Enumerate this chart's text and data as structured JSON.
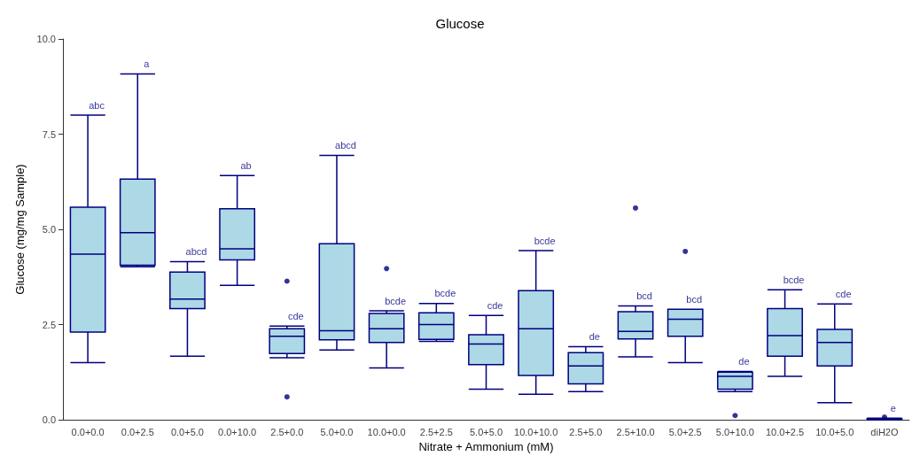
{
  "chart_data": {
    "type": "box",
    "title": "Glucose",
    "xlabel": "Nitrate + Ammonium (mM)",
    "ylabel": "Glucose (mg/mg Sample)",
    "categories": [
      "0.0+0.0",
      "0.0+2.5",
      "0.0+5.0",
      "0.0+10.0",
      "2.5+0.0",
      "5.0+0.0",
      "10.0+0.0",
      "2.5+2.5",
      "5.0+5.0",
      "10.0+10.0",
      "2.5+5.0",
      "2.5+10.0",
      "5.0+2.5",
      "5.0+10.0",
      "10.0+2.5",
      "10.0+5.0",
      "diH2O"
    ],
    "color": "#add8e6",
    "boxes": [
      {
        "low": 1.5,
        "q1": 2.3,
        "median": 4.35,
        "q3": 5.58,
        "high": 8.0
      },
      {
        "low": 4.02,
        "q1": 4.06,
        "median": 4.91,
        "q3": 6.32,
        "high": 9.08
      },
      {
        "low": 1.67,
        "q1": 2.92,
        "median": 3.17,
        "q3": 3.88,
        "high": 4.15
      },
      {
        "low": 3.53,
        "q1": 4.2,
        "median": 4.49,
        "q3": 5.54,
        "high": 6.41
      },
      {
        "low": 1.63,
        "q1": 1.74,
        "median": 2.19,
        "q3": 2.39,
        "high": 2.46,
        "outliers": [
          3.64,
          0.6
        ]
      },
      {
        "low": 1.83,
        "q1": 2.1,
        "median": 2.34,
        "q3": 4.62,
        "high": 6.94
      },
      {
        "low": 1.36,
        "q1": 2.03,
        "median": 2.39,
        "q3": 2.79,
        "high": 2.86,
        "outliers": [
          3.97
        ]
      },
      {
        "low": 2.06,
        "q1": 2.11,
        "median": 2.5,
        "q3": 2.81,
        "high": 3.05
      },
      {
        "low": 0.8,
        "q1": 1.45,
        "median": 1.99,
        "q3": 2.23,
        "high": 2.74
      },
      {
        "low": 0.67,
        "q1": 1.16,
        "median": 2.39,
        "q3": 3.39,
        "high": 4.44
      },
      {
        "low": 0.74,
        "q1": 0.94,
        "median": 1.41,
        "q3": 1.76,
        "high": 1.92
      },
      {
        "low": 1.65,
        "q1": 2.12,
        "median": 2.32,
        "q3": 2.84,
        "high": 2.99,
        "outliers": [
          5.56
        ]
      },
      {
        "low": 1.5,
        "q1": 2.19,
        "median": 2.64,
        "q3": 2.9,
        "high": 2.9,
        "outliers": [
          4.42
        ]
      },
      {
        "low": 0.74,
        "q1": 0.8,
        "median": 1.14,
        "q3": 1.25,
        "high": 1.27,
        "outliers": [
          0.11
        ]
      },
      {
        "low": 1.14,
        "q1": 1.67,
        "median": 2.21,
        "q3": 2.92,
        "high": 3.41
      },
      {
        "low": 0.45,
        "q1": 1.41,
        "median": 2.03,
        "q3": 2.37,
        "high": 3.04
      },
      {
        "low": 0,
        "q1": 0.01,
        "median": 0.02,
        "q3": 0.03,
        "high": 0.04,
        "outliers": [
          0.07
        ]
      }
    ],
    "ylim": [
      0,
      10
    ],
    "yticks": [
      {
        "value": 0,
        "label": "0.0"
      },
      {
        "value": 2.5,
        "label": "2.5"
      },
      {
        "value": 5,
        "label": "5.0"
      },
      {
        "value": 7.5,
        "label": "7.5"
      },
      {
        "value": 10,
        "label": "10.0"
      }
    ],
    "grid": false,
    "annotations": [
      "abc",
      "a",
      "abcd",
      "ab",
      "cde",
      "abcd",
      "bcde",
      "bcde",
      "cde",
      "bcde",
      "de",
      "bcd",
      "bcd",
      "de",
      "bcde",
      "cde",
      "e"
    ]
  }
}
